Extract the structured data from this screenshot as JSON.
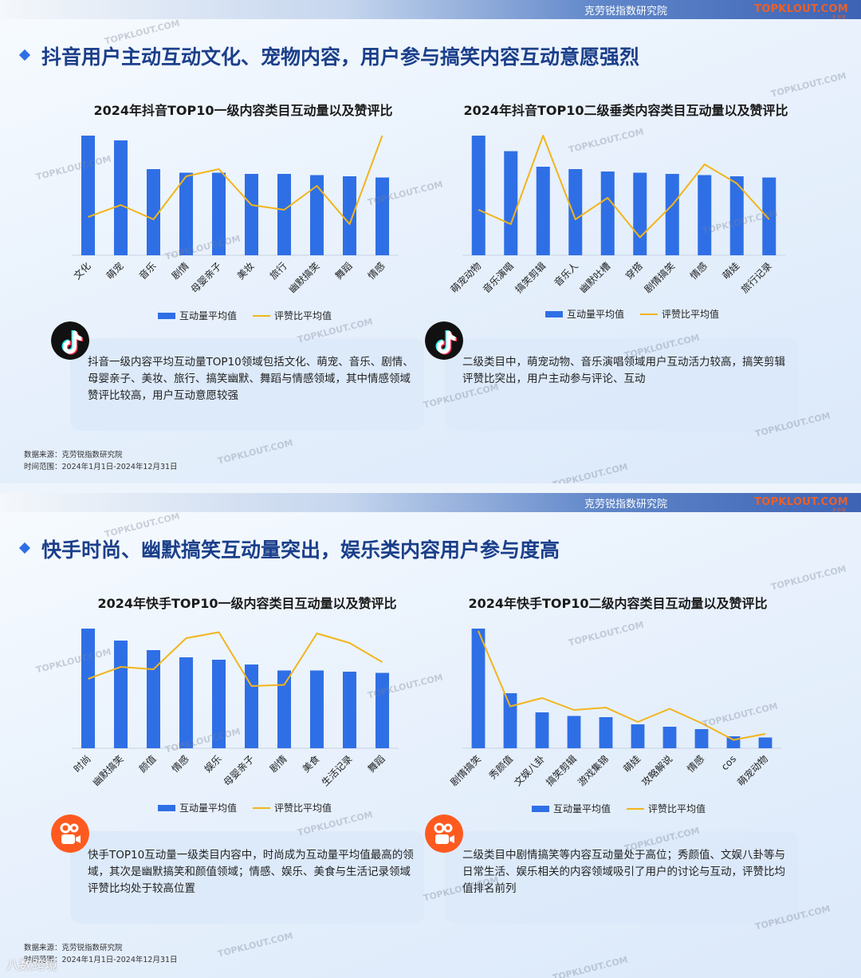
{
  "slides": [
    {
      "institute": "克劳锐指数研究院",
      "logo": "TOPKLOUT.COM",
      "logo_sub": "克劳锐",
      "headline": "抖音用户主动互动文化、宠物内容，用户参与搞笑内容互动意愿强烈",
      "left_chart_title": "2024年抖音TOP10一级内容类目互动量以及赞评比",
      "right_chart_title": "2024年抖音TOP10二级垂类内容类目互动量以及赞评比",
      "note_left": "抖音一级内容平均互动量TOP10领域包括文化、萌宠、音乐、剧情、母婴亲子、美妆、旅行、搞笑幽默、舞蹈与情感领域，其中情感领域赞评比较高，用户互动意愿较强",
      "note_right": "二级类目中，萌宠动物、音乐演唱领域用户互动活力较高，搞笑剪辑评赞比突出，用户主动参与评论、互动",
      "source": "数据来源：克劳锐指数研究院",
      "period": "时间范围：2024年1月1日-2024年12月31日",
      "app_icon": "douyin-icon"
    },
    {
      "institute": "克劳锐指数研究院",
      "logo": "TOPKLOUT.COM",
      "logo_sub": "克劳锐",
      "headline": "快手时尚、幽默搞笑互动量突出，娱乐类内容用户参与度高",
      "left_chart_title": "2024年快手TOP10一级内容类目互动量以及赞评比",
      "right_chart_title": "2024年快手TOP10二级内容类目互动量以及赞评比",
      "note_left": "快手TOP10互动量一级类目内容中，时尚成为互动量平均值最高的领域，其次是幽默搞笑和颜值领域；情感、娱乐、美食与生活记录领域评赞比均处于较高位置",
      "note_right": "二级类目中剧情搞笑等内容互动量处于高位；秀颜值、文娱八卦等与日常生活、娱乐相关的内容领域吸引了用户的讨论与互动，评赞比均值排名前列",
      "source": "数据来源：克劳锐指数研究院",
      "period": "时间范围：2024年1月1日-2024年12月31日",
      "app_icon": "kuaishou-icon"
    }
  ],
  "legend": {
    "bar": "互动量平均值",
    "line": "评赞比平均值"
  },
  "watermark": "TOPKLOUT.COM",
  "brand_watermark": "八数跨境",
  "colors": {
    "bar": "#2f6fe6",
    "line": "#f2b51c",
    "headline": "#1b3f8a"
  },
  "chart_data": [
    {
      "type": "bar",
      "title": "2024年抖音TOP10一级内容类目互动量以及赞评比",
      "categories": [
        "文化",
        "萌宠",
        "音乐",
        "剧情",
        "母婴亲子",
        "美妆",
        "旅行",
        "幽默搞笑",
        "舞蹈",
        "情感"
      ],
      "series": [
        {
          "name": "互动量平均值",
          "kind": "bar",
          "values": [
            100,
            96,
            72,
            69,
            69,
            68,
            68,
            67,
            66,
            65
          ]
        },
        {
          "name": "评赞比平均值",
          "kind": "line",
          "values": [
            32,
            42,
            30,
            66,
            72,
            42,
            38,
            58,
            26,
            100
          ]
        }
      ],
      "ylim": [
        0,
        100
      ],
      "grid": false,
      "legend": "bottom"
    },
    {
      "type": "bar",
      "title": "2024年抖音TOP10二级垂类内容类目互动量以及赞评比",
      "categories": [
        "萌宠动物",
        "音乐演唱",
        "搞笑剪辑",
        "音乐人",
        "幽默吐槽",
        "穿搭",
        "剧情搞笑",
        "情感",
        "萌娃",
        "旅行记录"
      ],
      "series": [
        {
          "name": "互动量平均值",
          "kind": "bar",
          "values": [
            100,
            87,
            74,
            72,
            70,
            69,
            68,
            67,
            66,
            65
          ]
        },
        {
          "name": "评赞比平均值",
          "kind": "line",
          "values": [
            38,
            26,
            100,
            30,
            48,
            15,
            42,
            76,
            60,
            30
          ]
        }
      ],
      "ylim": [
        0,
        100
      ],
      "grid": false,
      "legend": "bottom"
    },
    {
      "type": "bar",
      "title": "2024年快手TOP10一级内容类目互动量以及赞评比",
      "categories": [
        "时尚",
        "幽默搞笑",
        "颜值",
        "情感",
        "娱乐",
        "母婴亲子",
        "剧情",
        "美食",
        "生活记录",
        "舞蹈"
      ],
      "series": [
        {
          "name": "互动量平均值",
          "kind": "bar",
          "values": [
            100,
            90,
            82,
            76,
            74,
            70,
            65,
            65,
            64,
            63
          ]
        },
        {
          "name": "评赞比平均值",
          "kind": "line",
          "values": [
            58,
            68,
            66,
            92,
            97,
            52,
            53,
            96,
            88,
            72
          ]
        }
      ],
      "ylim": [
        0,
        100
      ],
      "grid": false,
      "legend": "bottom"
    },
    {
      "type": "bar",
      "title": "2024年快手TOP10二级内容类目互动量以及赞评比",
      "categories": [
        "剧情搞笑",
        "秀颜值",
        "文娱八卦",
        "搞笑剪辑",
        "游戏集锦",
        "萌娃",
        "攻略解说",
        "情感",
        "cos",
        "萌宠动物"
      ],
      "series": [
        {
          "name": "互动量平均值",
          "kind": "bar",
          "values": [
            100,
            46,
            30,
            27,
            26,
            20,
            18,
            16,
            10,
            9
          ]
        },
        {
          "name": "评赞比平均值",
          "kind": "line",
          "values": [
            98,
            35,
            42,
            32,
            34,
            22,
            33,
            21,
            7,
            12
          ]
        }
      ],
      "ylim": [
        0,
        100
      ],
      "grid": false,
      "legend": "bottom"
    }
  ]
}
